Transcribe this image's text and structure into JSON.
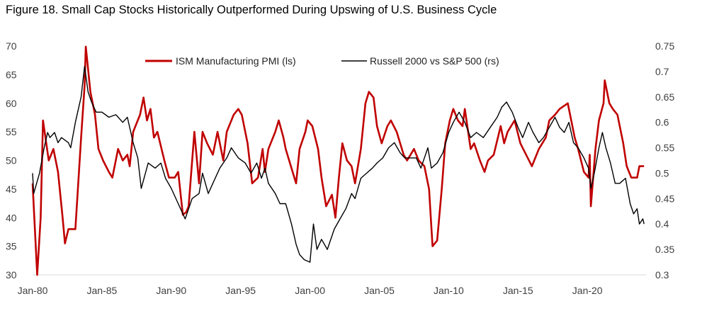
{
  "chart_data": {
    "type": "line",
    "title": "Figure 18. Small Cap Stocks Historically Outperformed During Upswing of U.S. Business Cycle",
    "x_ticks": [
      "Jan-80",
      "Jan-85",
      "Jan-90",
      "Jan-95",
      "Jan-00",
      "Jan-05",
      "Jan-10",
      "Jan-15",
      "Jan-20"
    ],
    "y_left": {
      "ticks": [
        "30",
        "35",
        "40",
        "45",
        "50",
        "55",
        "60",
        "65",
        "70"
      ],
      "range": [
        30,
        70
      ]
    },
    "y_right": {
      "ticks": [
        "0.3",
        "0.35",
        "0.4",
        "0.45",
        "0.5",
        "0.55",
        "0.6",
        "0.65",
        "0.7",
        "0.75"
      ],
      "range": [
        0.3,
        0.75
      ]
    },
    "x_range": [
      "1980-01",
      "2024-02"
    ],
    "grid": false,
    "legend_placement": "top-center",
    "series": [
      {
        "name": "ISM Manufacturing PMI (ls)",
        "axis": "left",
        "color": "#C00000",
        "points": [
          [
            "1980-01",
            46
          ],
          [
            "1980-05",
            30
          ],
          [
            "1980-08",
            40
          ],
          [
            "1980-10",
            57
          ],
          [
            "1981-03",
            50
          ],
          [
            "1981-07",
            52
          ],
          [
            "1981-11",
            48
          ],
          [
            "1982-03",
            40
          ],
          [
            "1982-05",
            35.5
          ],
          [
            "1982-08",
            38
          ],
          [
            "1983-02",
            38
          ],
          [
            "1983-07",
            54
          ],
          [
            "1983-10",
            63
          ],
          [
            "1983-11",
            69.9
          ],
          [
            "1984-03",
            62
          ],
          [
            "1984-07",
            58
          ],
          [
            "1984-10",
            52
          ],
          [
            "1985-02",
            50
          ],
          [
            "1985-07",
            48
          ],
          [
            "1985-10",
            47
          ],
          [
            "1986-03",
            52
          ],
          [
            "1986-07",
            50
          ],
          [
            "1986-11",
            51
          ],
          [
            "1987-01",
            49
          ],
          [
            "1987-04",
            55
          ],
          [
            "1987-10",
            58
          ],
          [
            "1988-01",
            61
          ],
          [
            "1988-04",
            57
          ],
          [
            "1988-07",
            59
          ],
          [
            "1988-10",
            54
          ],
          [
            "1989-01",
            55
          ],
          [
            "1989-07",
            50
          ],
          [
            "1989-11",
            47
          ],
          [
            "1990-04",
            47
          ],
          [
            "1990-07",
            48
          ],
          [
            "1990-11",
            40.5
          ],
          [
            "1991-02",
            41
          ],
          [
            "1991-04",
            42
          ],
          [
            "1991-09",
            55
          ],
          [
            "1992-01",
            46
          ],
          [
            "1992-04",
            55
          ],
          [
            "1992-08",
            53
          ],
          [
            "1993-01",
            51
          ],
          [
            "1993-05",
            55
          ],
          [
            "1993-10",
            50
          ],
          [
            "1994-01",
            55
          ],
          [
            "1994-07",
            58
          ],
          [
            "1994-11",
            59
          ],
          [
            "1995-02",
            58
          ],
          [
            "1995-07",
            53
          ],
          [
            "1995-11",
            46
          ],
          [
            "1996-04",
            47
          ],
          [
            "1996-08",
            52
          ],
          [
            "1996-10",
            48
          ],
          [
            "1997-01",
            52
          ],
          [
            "1997-07",
            55
          ],
          [
            "1997-10",
            57
          ],
          [
            "1998-02",
            54
          ],
          [
            "1998-04",
            52
          ],
          [
            "1998-10",
            48
          ],
          [
            "1999-01",
            46
          ],
          [
            "1999-04",
            52
          ],
          [
            "1999-09",
            55
          ],
          [
            "1999-11",
            57
          ],
          [
            "2000-03",
            56
          ],
          [
            "2000-08",
            52
          ],
          [
            "2000-11",
            47
          ],
          [
            "2001-03",
            42
          ],
          [
            "2001-08",
            44
          ],
          [
            "2001-11",
            40
          ],
          [
            "2002-02",
            47
          ],
          [
            "2002-05",
            53
          ],
          [
            "2002-09",
            50
          ],
          [
            "2003-01",
            49
          ],
          [
            "2003-04",
            46
          ],
          [
            "2003-09",
            52
          ],
          [
            "2004-01",
            60
          ],
          [
            "2004-04",
            62
          ],
          [
            "2004-08",
            61
          ],
          [
            "2004-11",
            56
          ],
          [
            "2005-03",
            53
          ],
          [
            "2005-08",
            56
          ],
          [
            "2005-11",
            57
          ],
          [
            "2006-04",
            55
          ],
          [
            "2006-10",
            51
          ],
          [
            "2007-01",
            50
          ],
          [
            "2007-07",
            52
          ],
          [
            "2007-11",
            50
          ],
          [
            "2008-04",
            49
          ],
          [
            "2008-08",
            45
          ],
          [
            "2008-11",
            35
          ],
          [
            "2009-03",
            36
          ],
          [
            "2009-07",
            45
          ],
          [
            "2009-10",
            53
          ],
          [
            "2010-02",
            57
          ],
          [
            "2010-05",
            59
          ],
          [
            "2010-09",
            57
          ],
          [
            "2011-01",
            56
          ],
          [
            "2011-03",
            59
          ],
          [
            "2011-08",
            52
          ],
          [
            "2011-11",
            53
          ],
          [
            "2012-04",
            50
          ],
          [
            "2012-08",
            48
          ],
          [
            "2012-11",
            50
          ],
          [
            "2013-04",
            51
          ],
          [
            "2013-10",
            56
          ],
          [
            "2014-01",
            53
          ],
          [
            "2014-04",
            55
          ],
          [
            "2014-10",
            57
          ],
          [
            "2015-03",
            53
          ],
          [
            "2015-08",
            51
          ],
          [
            "2016-01",
            49
          ],
          [
            "2016-07",
            52
          ],
          [
            "2017-01",
            54
          ],
          [
            "2017-04",
            57
          ],
          [
            "2017-09",
            58
          ],
          [
            "2018-01",
            59
          ],
          [
            "2018-08",
            60
          ],
          [
            "2018-11",
            57
          ],
          [
            "2019-02",
            54
          ],
          [
            "2019-05",
            52
          ],
          [
            "2019-10",
            48
          ],
          [
            "2020-02",
            47
          ],
          [
            "2020-03",
            51
          ],
          [
            "2020-04",
            42
          ],
          [
            "2020-08",
            52
          ],
          [
            "2020-11",
            57
          ],
          [
            "2021-03",
            60
          ],
          [
            "2021-04",
            64
          ],
          [
            "2021-08",
            60
          ],
          [
            "2021-11",
            59
          ],
          [
            "2022-03",
            58
          ],
          [
            "2022-08",
            53
          ],
          [
            "2022-11",
            49
          ],
          [
            "2023-03",
            47
          ],
          [
            "2023-08",
            47
          ],
          [
            "2023-10",
            49
          ],
          [
            "2024-02",
            49
          ]
        ]
      },
      {
        "name": "Russell 2000 vs S&P 500 (rs)",
        "axis": "right",
        "color": "#000000",
        "points": [
          [
            "1980-01",
            0.5
          ],
          [
            "1980-02",
            0.46
          ],
          [
            "1980-07",
            0.5
          ],
          [
            "1980-11",
            0.55
          ],
          [
            "1981-02",
            0.58
          ],
          [
            "1981-04",
            0.57
          ],
          [
            "1981-08",
            0.58
          ],
          [
            "1981-11",
            0.56
          ],
          [
            "1982-02",
            0.57
          ],
          [
            "1982-08",
            0.56
          ],
          [
            "1982-10",
            0.55
          ],
          [
            "1983-02",
            0.6
          ],
          [
            "1983-07",
            0.65
          ],
          [
            "1983-10",
            0.71
          ],
          [
            "1984-01",
            0.66
          ],
          [
            "1984-04",
            0.64
          ],
          [
            "1984-08",
            0.62
          ],
          [
            "1985-01",
            0.62
          ],
          [
            "1985-07",
            0.61
          ],
          [
            "1986-01",
            0.615
          ],
          [
            "1986-07",
            0.6
          ],
          [
            "1986-11",
            0.61
          ],
          [
            "1987-04",
            0.56
          ],
          [
            "1987-08",
            0.53
          ],
          [
            "1987-11",
            0.47
          ],
          [
            "1988-05",
            0.52
          ],
          [
            "1988-11",
            0.51
          ],
          [
            "1989-04",
            0.52
          ],
          [
            "1989-08",
            0.49
          ],
          [
            "1990-01",
            0.47
          ],
          [
            "1990-07",
            0.44
          ],
          [
            "1991-01",
            0.41
          ],
          [
            "1991-07",
            0.45
          ],
          [
            "1992-01",
            0.46
          ],
          [
            "1992-04",
            0.5
          ],
          [
            "1992-09",
            0.46
          ],
          [
            "1993-01",
            0.48
          ],
          [
            "1993-07",
            0.51
          ],
          [
            "1994-01",
            0.53
          ],
          [
            "1994-05",
            0.55
          ],
          [
            "1994-11",
            0.53
          ],
          [
            "1995-05",
            0.52
          ],
          [
            "1995-10",
            0.5
          ],
          [
            "1996-03",
            0.52
          ],
          [
            "1996-07",
            0.49
          ],
          [
            "1996-10",
            0.51
          ],
          [
            "1997-01",
            0.48
          ],
          [
            "1997-07",
            0.46
          ],
          [
            "1997-11",
            0.44
          ],
          [
            "1998-04",
            0.44
          ],
          [
            "1998-09",
            0.4
          ],
          [
            "1999-01",
            0.36
          ],
          [
            "1999-04",
            0.34
          ],
          [
            "1999-08",
            0.33
          ],
          [
            "2000-01",
            0.325
          ],
          [
            "2000-04",
            0.4
          ],
          [
            "2000-07",
            0.35
          ],
          [
            "2000-11",
            0.37
          ],
          [
            "2001-04",
            0.35
          ],
          [
            "2001-10",
            0.39
          ],
          [
            "2002-03",
            0.41
          ],
          [
            "2002-08",
            0.43
          ],
          [
            "2003-01",
            0.46
          ],
          [
            "2003-04",
            0.45
          ],
          [
            "2003-09",
            0.49
          ],
          [
            "2004-02",
            0.5
          ],
          [
            "2004-07",
            0.51
          ],
          [
            "2004-11",
            0.52
          ],
          [
            "2005-04",
            0.53
          ],
          [
            "2005-09",
            0.55
          ],
          [
            "2006-02",
            0.56
          ],
          [
            "2006-07",
            0.54
          ],
          [
            "2006-11",
            0.53
          ],
          [
            "2007-04",
            0.53
          ],
          [
            "2007-09",
            0.53
          ],
          [
            "2008-01",
            0.51
          ],
          [
            "2008-07",
            0.55
          ],
          [
            "2008-10",
            0.51
          ],
          [
            "2009-03",
            0.52
          ],
          [
            "2009-08",
            0.54
          ],
          [
            "2010-01",
            0.58
          ],
          [
            "2010-05",
            0.6
          ],
          [
            "2010-10",
            0.62
          ],
          [
            "2011-03",
            0.6
          ],
          [
            "2011-08",
            0.57
          ],
          [
            "2012-01",
            0.58
          ],
          [
            "2012-07",
            0.57
          ],
          [
            "2013-01",
            0.59
          ],
          [
            "2013-07",
            0.61
          ],
          [
            "2013-11",
            0.63
          ],
          [
            "2014-03",
            0.64
          ],
          [
            "2014-08",
            0.62
          ],
          [
            "2015-01",
            0.59
          ],
          [
            "2015-05",
            0.57
          ],
          [
            "2015-10",
            0.6
          ],
          [
            "2016-02",
            0.58
          ],
          [
            "2016-07",
            0.56
          ],
          [
            "2016-11",
            0.57
          ],
          [
            "2017-04",
            0.59
          ],
          [
            "2017-09",
            0.61
          ],
          [
            "2018-01",
            0.59
          ],
          [
            "2018-05",
            0.58
          ],
          [
            "2018-09",
            0.6
          ],
          [
            "2019-01",
            0.56
          ],
          [
            "2019-05",
            0.55
          ],
          [
            "2019-10",
            0.53
          ],
          [
            "2020-02",
            0.51
          ],
          [
            "2020-04",
            0.47
          ],
          [
            "2020-07",
            0.5
          ],
          [
            "2020-11",
            0.55
          ],
          [
            "2021-02",
            0.58
          ],
          [
            "2021-05",
            0.55
          ],
          [
            "2021-09",
            0.52
          ],
          [
            "2022-01",
            0.48
          ],
          [
            "2022-05",
            0.48
          ],
          [
            "2022-10",
            0.49
          ],
          [
            "2023-02",
            0.44
          ],
          [
            "2023-05",
            0.42
          ],
          [
            "2023-08",
            0.43
          ],
          [
            "2023-10",
            0.4
          ],
          [
            "2024-01",
            0.41
          ],
          [
            "2024-02",
            0.4
          ]
        ]
      }
    ]
  }
}
